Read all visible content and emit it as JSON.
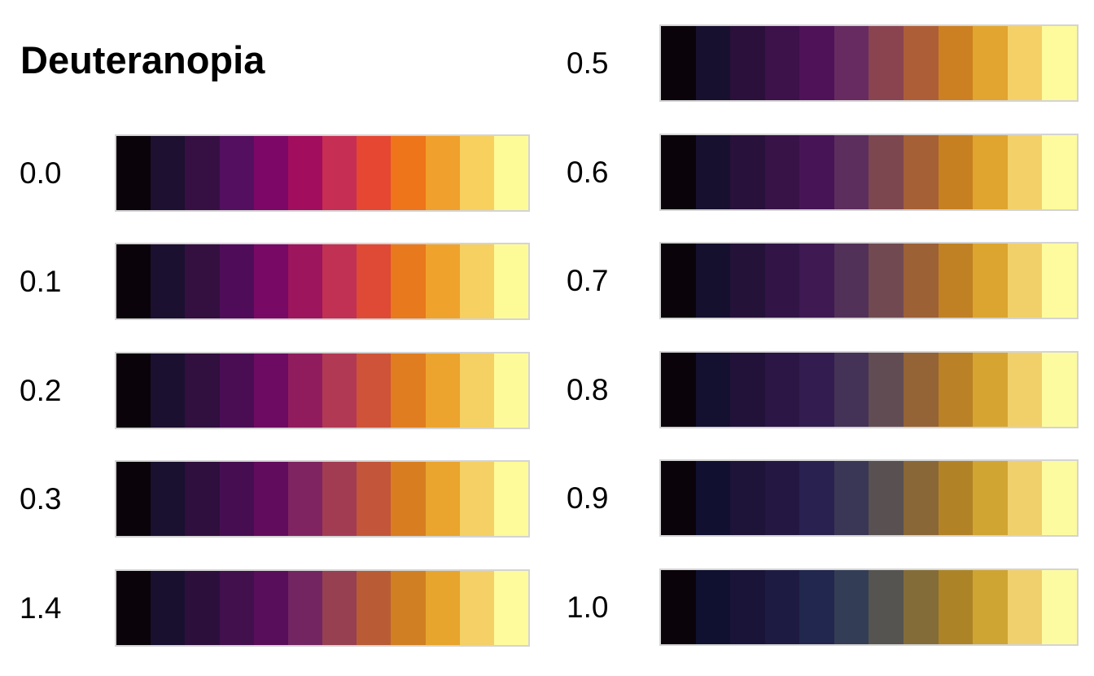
{
  "title": "Deuteranopia",
  "styles": {
    "background": "#ffffff",
    "text_color": "#000000",
    "swatch_border": "#d4d4d4"
  },
  "chart_data": {
    "type": "heatmap",
    "title": "Deuteranopia",
    "subtitle": "",
    "legend_position": "none",
    "grid": false,
    "row_label_meaning": "severity value shown left of each 12-step palette strip",
    "columns": [
      {
        "side": "left",
        "rows": [
          {
            "label": "0.0",
            "colors": [
              "#0a0309",
              "#1d1030",
              "#371043",
              "#540f61",
              "#7d0766",
              "#a30d5e",
              "#c72e53",
              "#e54733",
              "#ee7519",
              "#f0a02c",
              "#f7d05e",
              "#fdfb97"
            ]
          },
          {
            "label": "0.1",
            "colors": [
              "#0a0309",
              "#1c1030",
              "#341040",
              "#4f0d59",
              "#780964",
              "#9d155d",
              "#c03153",
              "#de4a36",
              "#e8791d",
              "#efa32d",
              "#f6d060",
              "#fdfb98"
            ]
          },
          {
            "label": "0.2",
            "colors": [
              "#0a0309",
              "#1b1030",
              "#310f3e",
              "#4a0d54",
              "#6d0a62",
              "#901c5e",
              "#b23954",
              "#ce5338",
              "#e07d20",
              "#eca42e",
              "#f5d062",
              "#fdfb99"
            ]
          },
          {
            "label": "0.3",
            "colors": [
              "#0a0309",
              "#1a102f",
              "#2f0f3d",
              "#460e50",
              "#620c5e",
              "#7f2460",
              "#a23c53",
              "#c2553a",
              "#d87e21",
              "#e9a52e",
              "#f5d064",
              "#fdfb9a"
            ]
          },
          {
            "label": "1.4",
            "colors": [
              "#0a0309",
              "#19102f",
              "#2d0f3c",
              "#42104d",
              "#590e5b",
              "#732562",
              "#964051",
              "#b95c35",
              "#d07f22",
              "#e7a52d",
              "#f4d066",
              "#fdfb9b"
            ]
          }
        ]
      },
      {
        "side": "right",
        "rows": [
          {
            "label": "0.5",
            "colors": [
              "#0a0309",
              "#18102f",
              "#2a103b",
              "#3d114a",
              "#4f1258",
              "#672b61",
              "#8a4450",
              "#ae5e36",
              "#cc8021",
              "#e2a52f",
              "#f4d067",
              "#fdfb9c"
            ]
          },
          {
            "label": "0.6",
            "colors": [
              "#0a0309",
              "#17102f",
              "#28113a",
              "#381348",
              "#471556",
              "#5c2e5e",
              "#7d474f",
              "#a66036",
              "#c68022",
              "#dfa52f",
              "#f3d068",
              "#fdfb9d"
            ]
          },
          {
            "label": "0.7",
            "colors": [
              "#0a0309",
              "#16102f",
              "#251239",
              "#321546",
              "#3e1952",
              "#513158",
              "#714a51",
              "#9d6136",
              "#c08124",
              "#dba530",
              "#f2d069",
              "#fdfb9e"
            ]
          },
          {
            "label": "0.8",
            "colors": [
              "#0a0309",
              "#14102f",
              "#221239",
              "#2c1645",
              "#331c50",
              "#443356",
              "#624c53",
              "#946336",
              "#ba8126",
              "#d6a531",
              "#f1d06a",
              "#fdfb9f"
            ]
          },
          {
            "label": "0.9",
            "colors": [
              "#0a0309",
              "#121030",
              "#1e1339",
              "#241843",
              "#292150",
              "#3a3756",
              "#585051",
              "#8a6737",
              "#b28227",
              "#d1a532",
              "#f0d06b",
              "#fdfba0"
            ]
          },
          {
            "label": "1.0",
            "colors": [
              "#0a0309",
              "#101030",
              "#1a1438",
              "#1e1b43",
              "#21274e",
              "#343d56",
              "#555450",
              "#846c38",
              "#ac8427",
              "#cea533",
              "#f0d06c",
              "#fdfba1"
            ]
          }
        ]
      }
    ]
  }
}
